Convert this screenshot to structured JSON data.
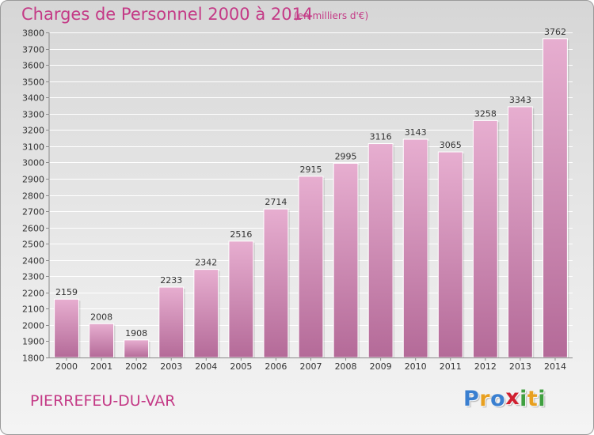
{
  "header": {
    "title": "Charges de Personnel 2000 à 2014",
    "subtitle": "(en milliers d'€)"
  },
  "footer": {
    "commune": "PIERREFEU-DU-VAR",
    "brand": "Proxiti",
    "brand_letters": [
      {
        "char": "P",
        "color": "#3a7fd0"
      },
      {
        "char": "r",
        "color": "#e8a020"
      },
      {
        "char": "o",
        "color": "#3a7fd0"
      },
      {
        "char": "x",
        "color": "#d02030"
      },
      {
        "char": "i",
        "color": "#40a040"
      },
      {
        "char": "t",
        "color": "#e8a020"
      },
      {
        "char": "i",
        "color": "#40a040"
      }
    ]
  },
  "colors": {
    "title": "#c43a86",
    "bar_light": "#e7aed0",
    "bar_dark": "#b46a98"
  },
  "chart_data": {
    "type": "bar",
    "title": "Charges de Personnel 2000 à 2014",
    "subtitle": "(en milliers d'€)",
    "xlabel": "",
    "ylabel": "",
    "categories": [
      "2000",
      "2001",
      "2002",
      "2003",
      "2004",
      "2005",
      "2006",
      "2007",
      "2008",
      "2009",
      "2010",
      "2011",
      "2012",
      "2013",
      "2014"
    ],
    "values": [
      2159,
      2008,
      1908,
      2233,
      2342,
      2516,
      2714,
      2915,
      2995,
      3116,
      3143,
      3065,
      3258,
      3343,
      3762
    ],
    "ylim": [
      1800,
      3800
    ],
    "ytick_step": 100,
    "grid": true,
    "data_labels": true
  }
}
